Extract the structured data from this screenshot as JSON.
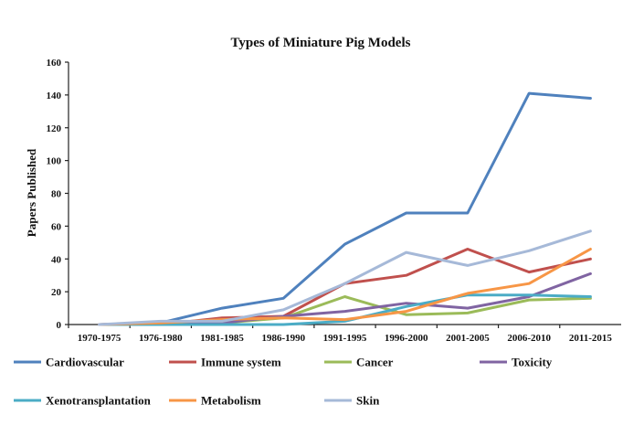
{
  "chart_data": {
    "type": "line",
    "title": "Types of Miniature Pig Models",
    "ylabel": "Papers Published",
    "xlabel": "",
    "ylim": [
      0,
      160
    ],
    "yticks": [
      0,
      20,
      40,
      60,
      80,
      100,
      120,
      140,
      160
    ],
    "grid": false,
    "legend_position": "bottom",
    "categories": [
      "1970-1975",
      "1976-1980",
      "1981-1985",
      "1986-1990",
      "1991-1995",
      "1996-2000",
      "2001-2005",
      "2006-2010",
      "2011-2015"
    ],
    "series": [
      {
        "name": "Cardiovascular",
        "color": "#4F81BD",
        "values": [
          0,
          1,
          10,
          16,
          49,
          68,
          68,
          141,
          138
        ]
      },
      {
        "name": "Immune system",
        "color": "#C0504D",
        "values": [
          0,
          0,
          4,
          5,
          25,
          30,
          46,
          32,
          40
        ]
      },
      {
        "name": "Cancer",
        "color": "#9BBB59",
        "values": [
          0,
          0,
          1,
          4,
          17,
          6,
          7,
          15,
          16
        ]
      },
      {
        "name": "Toxicity",
        "color": "#8064A2",
        "values": [
          0,
          1,
          1,
          5,
          8,
          13,
          10,
          17,
          31
        ]
      },
      {
        "name": "Xenotransplantation",
        "color": "#4BACC6",
        "values": [
          0,
          0,
          0,
          0,
          2,
          11,
          18,
          18,
          17
        ]
      },
      {
        "name": "Metabolism",
        "color": "#F79646",
        "values": [
          0,
          1,
          3,
          4,
          3,
          8,
          19,
          25,
          46
        ]
      },
      {
        "name": "Skin",
        "color": "#A6B9D8",
        "values": [
          0,
          2,
          2,
          9,
          25,
          44,
          36,
          45,
          57
        ]
      }
    ]
  }
}
